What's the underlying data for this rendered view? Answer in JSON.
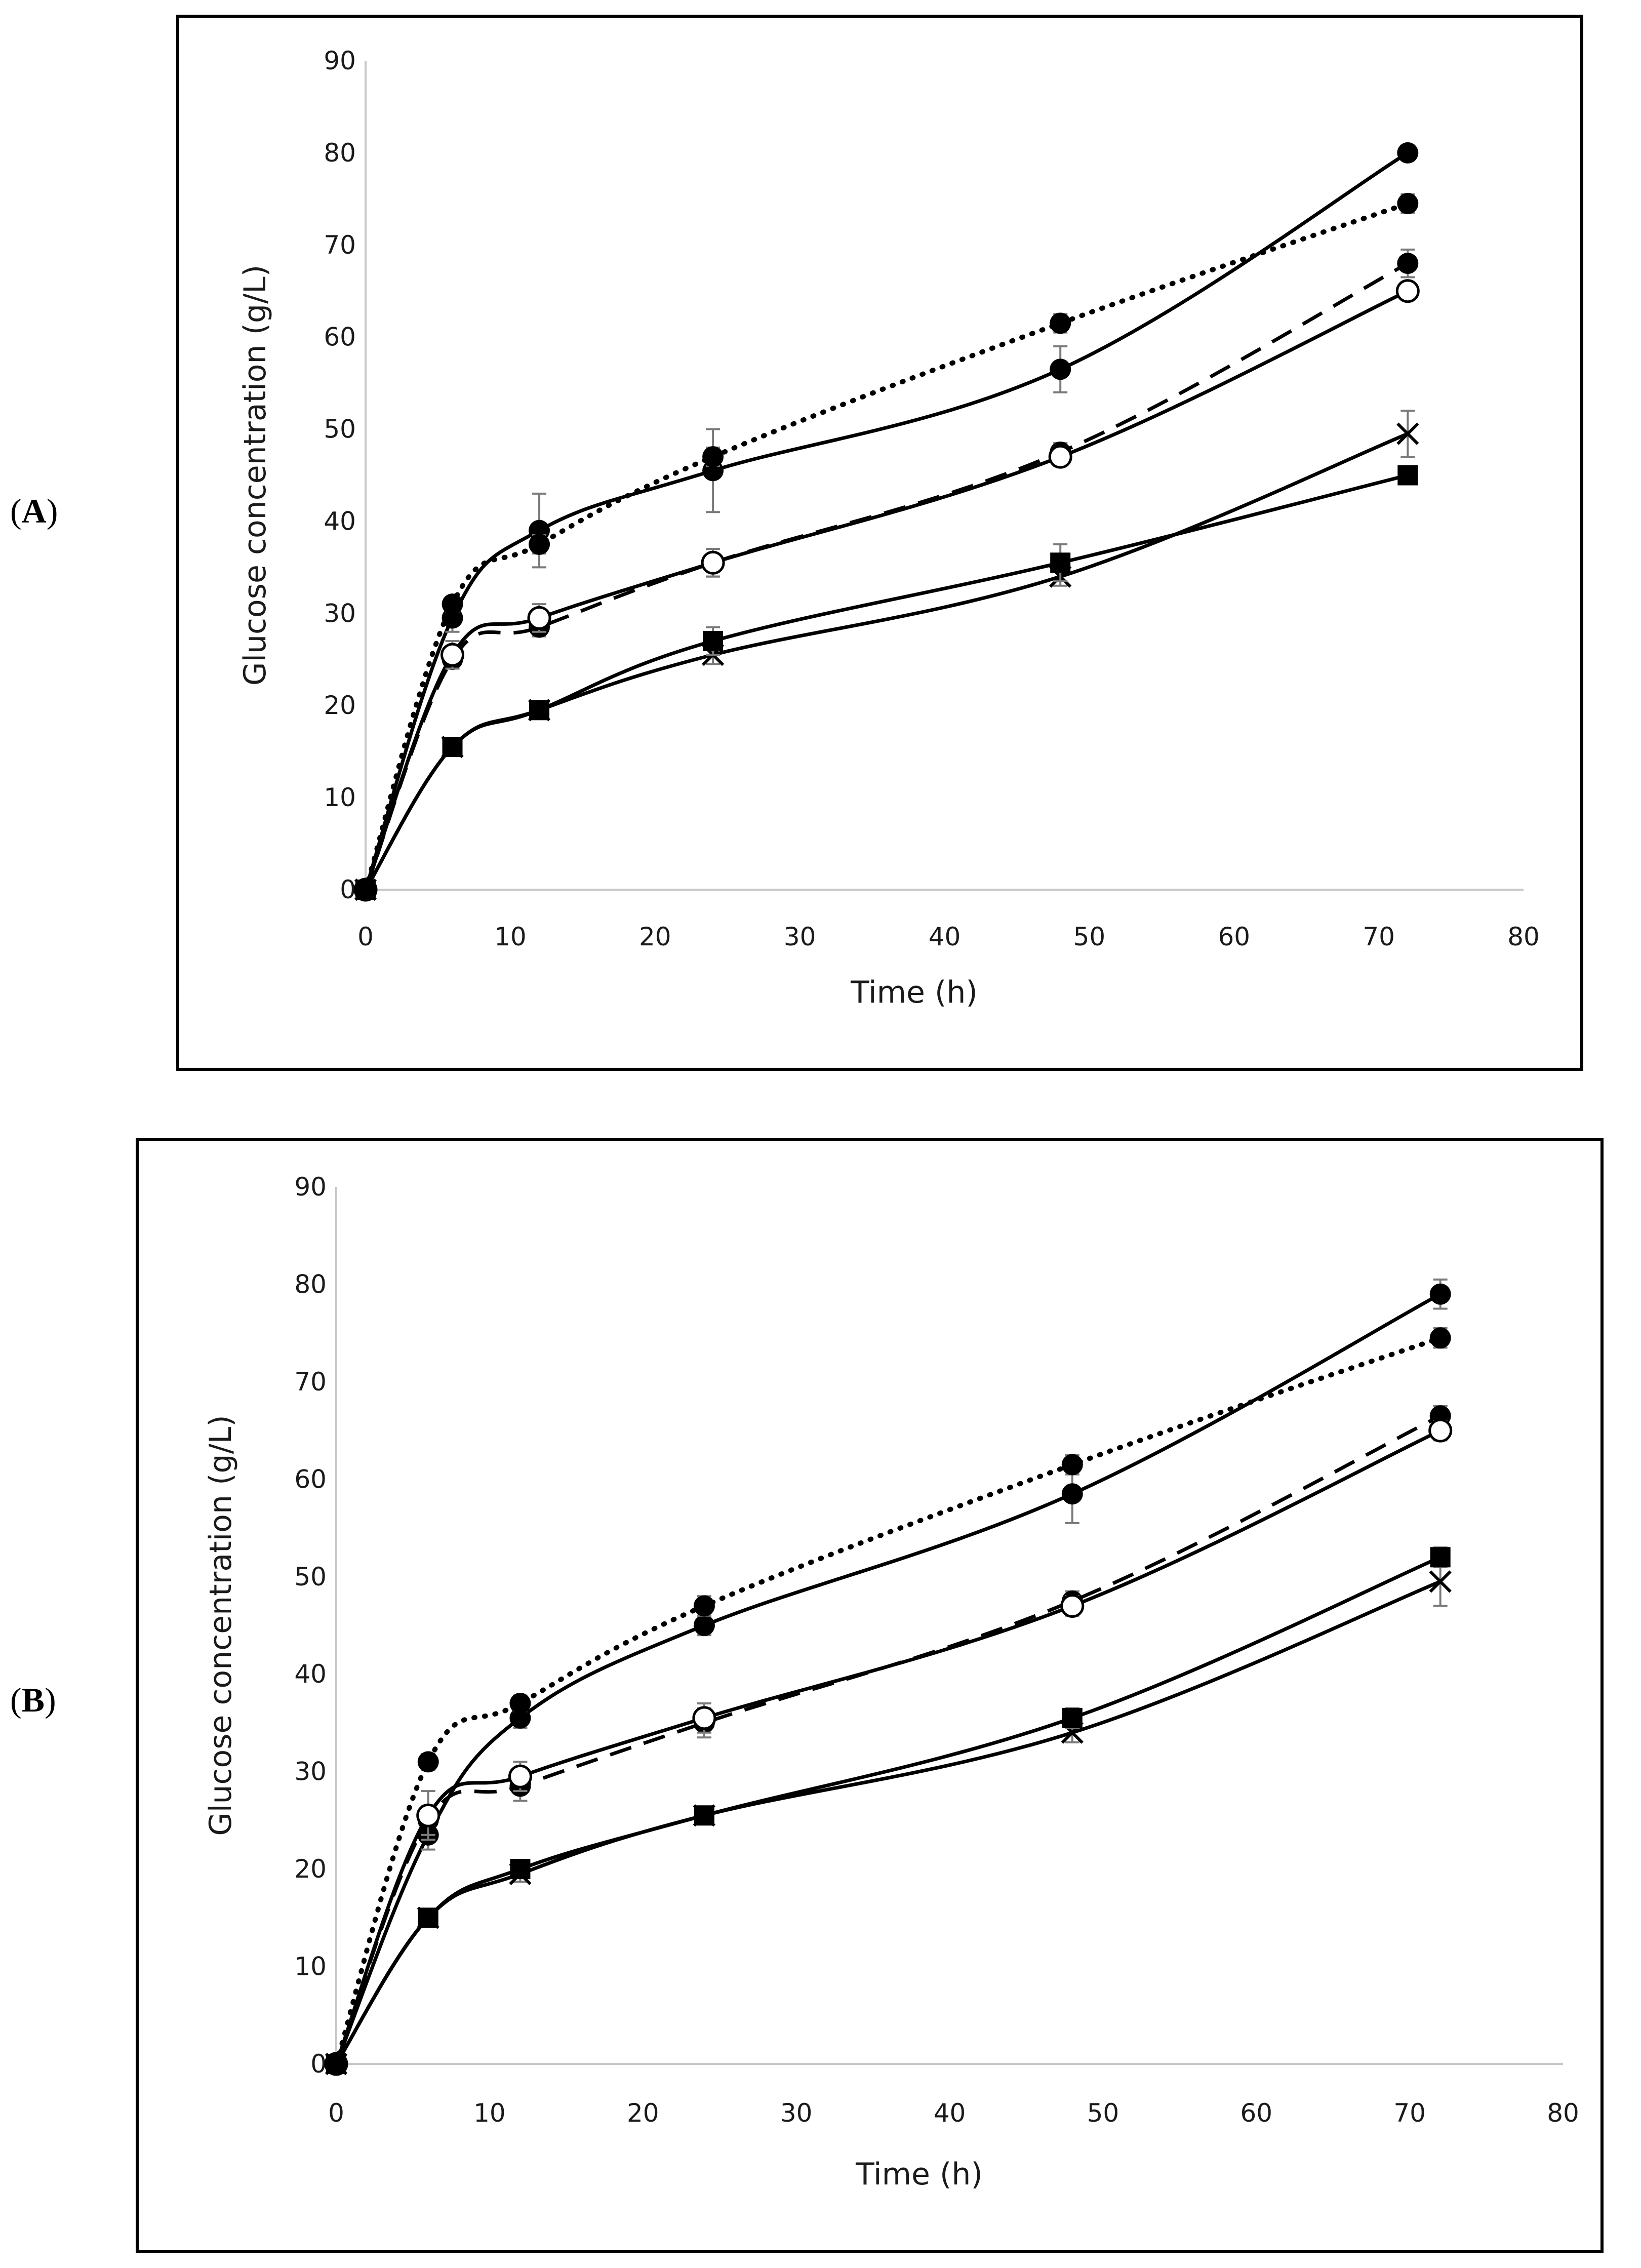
{
  "chart_data": [
    {
      "type": "line",
      "panel_label": "(A)",
      "panel_letter": "A",
      "xlabel": "Time (h)",
      "ylabel": "Glucose concentration (g/L)",
      "xlim": [
        0,
        80
      ],
      "ylim": [
        0,
        90
      ],
      "xticks": [
        0,
        10,
        20,
        30,
        40,
        50,
        60,
        70,
        80
      ],
      "yticks": [
        0,
        10,
        20,
        30,
        40,
        50,
        60,
        70,
        80,
        90
      ],
      "grid": false,
      "x": [
        0,
        6,
        12,
        24,
        48,
        72
      ],
      "series": [
        {
          "name": "filled circle, solid",
          "marker": "filled-circle",
          "line": "solid",
          "values": [
            0,
            29.5,
            39,
            45.5,
            56.5,
            80
          ],
          "errors": [
            0,
            1.5,
            4,
            4.5,
            2.5,
            0.8
          ]
        },
        {
          "name": "filled circle, dotted",
          "marker": "filled-circle",
          "line": "dotted",
          "values": [
            0,
            31,
            37.5,
            47,
            61.5,
            74.5
          ],
          "errors": [
            0,
            0.8,
            1,
            1,
            1,
            1
          ]
        },
        {
          "name": "filled circle, dashed",
          "marker": "filled-circle",
          "line": "dashed",
          "values": [
            0,
            25,
            28.5,
            35.5,
            47.5,
            68
          ],
          "errors": [
            0,
            1,
            1,
            1.5,
            1,
            1.5
          ]
        },
        {
          "name": "open circle, solid",
          "marker": "open-circle",
          "line": "solid",
          "values": [
            0,
            25.5,
            29.5,
            35.5,
            47,
            65
          ],
          "errors": [
            0,
            1.5,
            1.5,
            1.5,
            1,
            1
          ]
        },
        {
          "name": "cross, solid",
          "marker": "cross",
          "line": "solid",
          "values": [
            0,
            15.5,
            19.5,
            25.5,
            34,
            49.5
          ],
          "errors": [
            0,
            0.8,
            0.8,
            1,
            1,
            2.5
          ]
        },
        {
          "name": "square, solid",
          "marker": "square",
          "line": "solid",
          "values": [
            0,
            15.5,
            19.5,
            27,
            35.5,
            45
          ],
          "errors": [
            0,
            0.8,
            0.8,
            1.5,
            2,
            0.8
          ]
        }
      ]
    },
    {
      "type": "line",
      "panel_label": "(B)",
      "panel_letter": "B",
      "xlabel": "Time (h)",
      "ylabel": "Glucose concentration (g/L)",
      "xlim": [
        0,
        80
      ],
      "ylim": [
        0,
        90
      ],
      "xticks": [
        0,
        10,
        20,
        30,
        40,
        50,
        60,
        70,
        80
      ],
      "yticks": [
        0,
        10,
        20,
        30,
        40,
        50,
        60,
        70,
        80,
        90
      ],
      "grid": false,
      "x": [
        0,
        6,
        12,
        24,
        48,
        72
      ],
      "series": [
        {
          "name": "filled circle, solid",
          "marker": "filled-circle",
          "line": "solid",
          "values": [
            0,
            23.5,
            35.5,
            45,
            58.5,
            79
          ],
          "errors": [
            0,
            1.5,
            1,
            1,
            3,
            1.5
          ]
        },
        {
          "name": "filled circle, dotted",
          "marker": "filled-circle",
          "line": "dotted",
          "values": [
            0,
            31,
            37,
            47,
            61.5,
            74.5
          ],
          "errors": [
            0,
            0.8,
            0.8,
            1,
            1,
            1
          ]
        },
        {
          "name": "filled circle, dashed",
          "marker": "filled-circle",
          "line": "dashed",
          "values": [
            0,
            25,
            28.5,
            35,
            47.5,
            66.5
          ],
          "errors": [
            0,
            1.5,
            1.5,
            1.5,
            1,
            1
          ]
        },
        {
          "name": "open circle, solid",
          "marker": "open-circle",
          "line": "solid",
          "values": [
            0,
            25.5,
            29.5,
            35.5,
            47,
            65
          ],
          "errors": [
            0,
            2.5,
            1.5,
            1.5,
            1,
            1
          ]
        },
        {
          "name": "cross, solid",
          "marker": "cross",
          "line": "solid",
          "values": [
            0,
            15,
            19.5,
            25.5,
            34,
            49.5
          ],
          "errors": [
            0,
            0.8,
            0.8,
            0.8,
            1,
            2.5
          ]
        },
        {
          "name": "square, solid",
          "marker": "square",
          "line": "solid",
          "values": [
            0,
            15,
            20,
            25.5,
            35.5,
            52
          ],
          "errors": [
            0,
            0.8,
            0.8,
            0.8,
            1,
            1
          ]
        }
      ]
    }
  ]
}
